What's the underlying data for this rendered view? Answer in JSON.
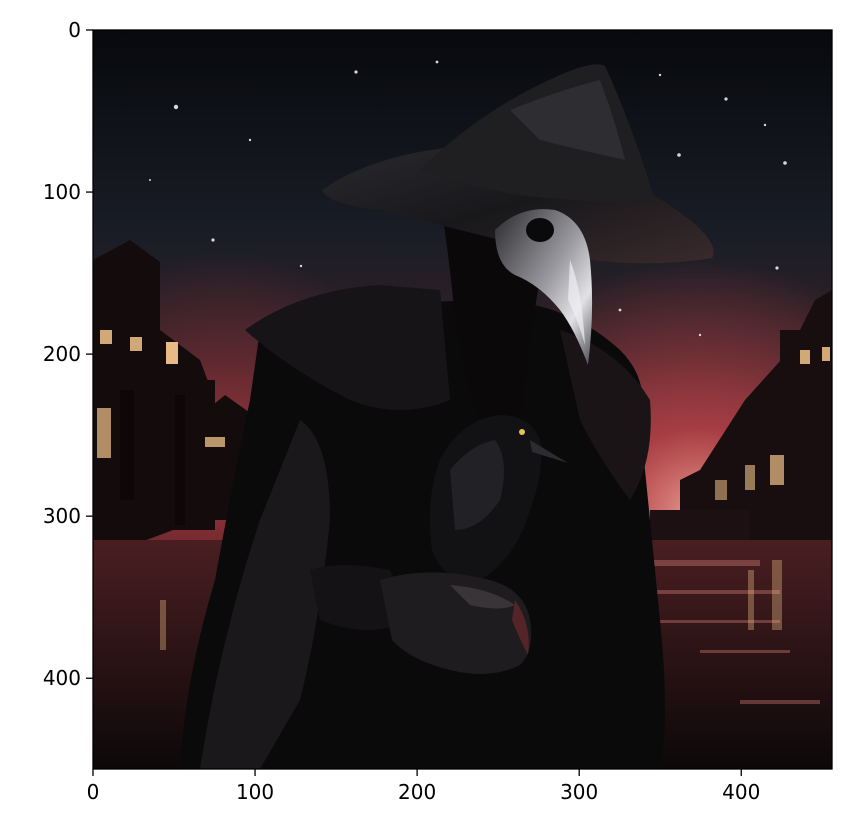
{
  "figure": {
    "x_axis": {
      "range": [
        0,
        456
      ],
      "ticks": [
        {
          "value": 0,
          "label": "0"
        },
        {
          "value": 100,
          "label": "100"
        },
        {
          "value": 200,
          "label": "200"
        },
        {
          "value": 300,
          "label": "300"
        },
        {
          "value": 400,
          "label": "400"
        }
      ]
    },
    "y_axis": {
      "range": [
        456,
        0
      ],
      "inverted": true,
      "ticks": [
        {
          "value": 0,
          "label": "0"
        },
        {
          "value": 100,
          "label": "100"
        },
        {
          "value": 200,
          "label": "200"
        },
        {
          "value": 300,
          "label": "300"
        },
        {
          "value": 400,
          "label": "400"
        }
      ]
    },
    "colors": {
      "sky_top": "#07090d",
      "sky_mid": "#1a1d26",
      "horizon_glow": "#c0464c",
      "horizon_core": "#e58a82",
      "buildings": "#140b0d",
      "window_light": "#f2c58a",
      "figure_dark": "#0b0a0b",
      "mask_metal": "#8d8d92",
      "mask_highlight": "#e2e2e6",
      "crow_dark": "#121214",
      "water": "#2a1416"
    }
  }
}
